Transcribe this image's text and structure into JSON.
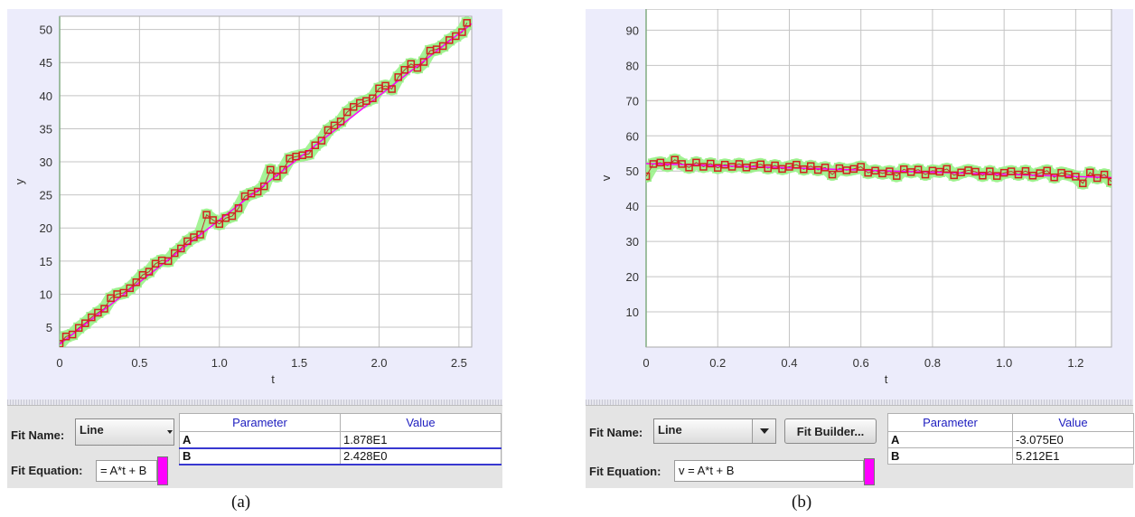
{
  "panels": [
    {
      "caption": "(a)",
      "fit": {
        "name_label": "Fit Name:",
        "name_value": "Line",
        "equation_label": "Fit Equation:",
        "equation_value": "= A*t + B",
        "builder_label": ""
      },
      "table": {
        "headers": [
          "Parameter",
          "Value"
        ],
        "rows": [
          {
            "name": "A",
            "value": "1.878E1"
          },
          {
            "name": "B",
            "value": "2.428E0"
          }
        ]
      }
    },
    {
      "caption": "(b)",
      "fit": {
        "name_label": "Fit Name:",
        "name_value": "Line",
        "equation_label": "Fit Equation:",
        "equation_value": "v = A*t + B",
        "builder_label": "Fit Builder..."
      },
      "table": {
        "headers": [
          "Parameter",
          "Value"
        ],
        "rows": [
          {
            "name": "A",
            "value": "-3.075E0"
          },
          {
            "name": "B",
            "value": "5.212E1"
          }
        ]
      }
    }
  ],
  "chart_data": [
    {
      "type": "scatter",
      "title": "",
      "xlabel": "t",
      "ylabel": "y",
      "xlim": [
        0,
        2.58
      ],
      "ylim": [
        2,
        52
      ],
      "xticks": [
        "0",
        "0.5",
        "1.0",
        "1.5",
        "2.0",
        "2.5"
      ],
      "yticks": [
        "5",
        "10",
        "15",
        "20",
        "25",
        "30",
        "35",
        "40",
        "45",
        "50"
      ],
      "grid": true,
      "fit_line": {
        "A": 18.78,
        "B": 2.428
      },
      "colors": {
        "marker": "#d42020",
        "halo": "#9cf28c",
        "fit": "#ff00ff",
        "axis": "#33b033"
      },
      "series": [
        {
          "x": [
            0.0,
            0.04,
            0.08,
            0.12,
            0.16,
            0.2,
            0.24,
            0.28,
            0.32,
            0.36,
            0.4,
            0.44,
            0.48,
            0.52,
            0.56,
            0.6,
            0.64,
            0.68,
            0.72,
            0.76,
            0.8,
            0.84,
            0.88,
            0.92,
            0.96,
            1.0,
            1.04,
            1.08,
            1.12,
            1.16,
            1.2,
            1.24,
            1.28,
            1.32,
            1.36,
            1.4,
            1.44,
            1.48,
            1.52,
            1.56,
            1.6,
            1.64,
            1.68,
            1.72,
            1.76,
            1.8,
            1.84,
            1.88,
            1.92,
            1.96,
            2.0,
            2.04,
            2.08,
            2.12,
            2.16,
            2.2,
            2.24,
            2.28,
            2.32,
            2.36,
            2.4,
            2.44,
            2.48,
            2.52,
            2.55
          ],
          "y": [
            2.5,
            3.6,
            3.9,
            4.9,
            5.6,
            6.5,
            7.2,
            7.8,
            9.4,
            10.0,
            10.2,
            10.9,
            11.8,
            12.9,
            13.4,
            14.6,
            15.1,
            15.0,
            16.2,
            16.9,
            18.0,
            18.6,
            19.0,
            22.0,
            21.2,
            20.6,
            21.5,
            21.8,
            23.0,
            24.8,
            25.2,
            25.5,
            26.3,
            28.8,
            27.8,
            28.8,
            30.5,
            30.8,
            31.0,
            31.2,
            32.5,
            33.2,
            34.8,
            35.5,
            36.1,
            37.5,
            38.3,
            38.9,
            39.2,
            39.6,
            41.1,
            41.5,
            41.0,
            42.8,
            43.9,
            44.8,
            44.2,
            45.1,
            46.8,
            47.0,
            47.5,
            48.4,
            49.0,
            49.6,
            51.0
          ]
        }
      ]
    },
    {
      "type": "scatter",
      "title": "",
      "xlabel": "t",
      "ylabel": "v",
      "xlim": [
        0,
        1.3
      ],
      "ylim": [
        0,
        96
      ],
      "xticks": [
        "0",
        "0.2",
        "0.4",
        "0.6",
        "0.8",
        "1.0",
        "1.2"
      ],
      "yticks": [
        "10",
        "20",
        "30",
        "40",
        "50",
        "60",
        "70",
        "80",
        "90"
      ],
      "grid": true,
      "fit_line": {
        "A": -3.075,
        "B": 52.12
      },
      "colors": {
        "marker": "#d42020",
        "halo": "#9cf28c",
        "fit": "#ff00ff",
        "axis": "#33b033"
      },
      "series": [
        {
          "x": [
            0.0,
            0.02,
            0.04,
            0.06,
            0.08,
            0.1,
            0.12,
            0.14,
            0.16,
            0.18,
            0.2,
            0.22,
            0.24,
            0.26,
            0.28,
            0.3,
            0.32,
            0.34,
            0.36,
            0.38,
            0.4,
            0.42,
            0.44,
            0.46,
            0.48,
            0.5,
            0.52,
            0.54,
            0.56,
            0.58,
            0.6,
            0.62,
            0.64,
            0.66,
            0.68,
            0.7,
            0.72,
            0.74,
            0.76,
            0.78,
            0.8,
            0.82,
            0.84,
            0.86,
            0.88,
            0.9,
            0.92,
            0.94,
            0.96,
            0.98,
            1.0,
            1.02,
            1.04,
            1.06,
            1.08,
            1.1,
            1.12,
            1.14,
            1.16,
            1.18,
            1.2,
            1.22,
            1.24,
            1.26,
            1.28,
            1.3
          ],
          "y": [
            48.5,
            52.0,
            52.4,
            51.5,
            53.2,
            52.0,
            51.0,
            52.4,
            51.2,
            52.1,
            50.9,
            51.8,
            51.2,
            52.0,
            51.0,
            51.5,
            51.9,
            50.8,
            51.6,
            50.6,
            51.2,
            51.8,
            50.5,
            51.4,
            50.3,
            51.0,
            49.0,
            50.8,
            50.2,
            50.6,
            51.2,
            49.5,
            50.1,
            49.3,
            49.9,
            48.6,
            50.5,
            49.7,
            50.4,
            49.0,
            50.1,
            49.8,
            50.6,
            48.8,
            49.6,
            50.2,
            49.8,
            48.7,
            49.9,
            48.6,
            49.5,
            49.9,
            49.0,
            50.0,
            48.7,
            49.4,
            50.1,
            48.2,
            49.5,
            49.0,
            48.4,
            46.5,
            49.6,
            48.0,
            49.0,
            47.0
          ]
        }
      ]
    }
  ]
}
